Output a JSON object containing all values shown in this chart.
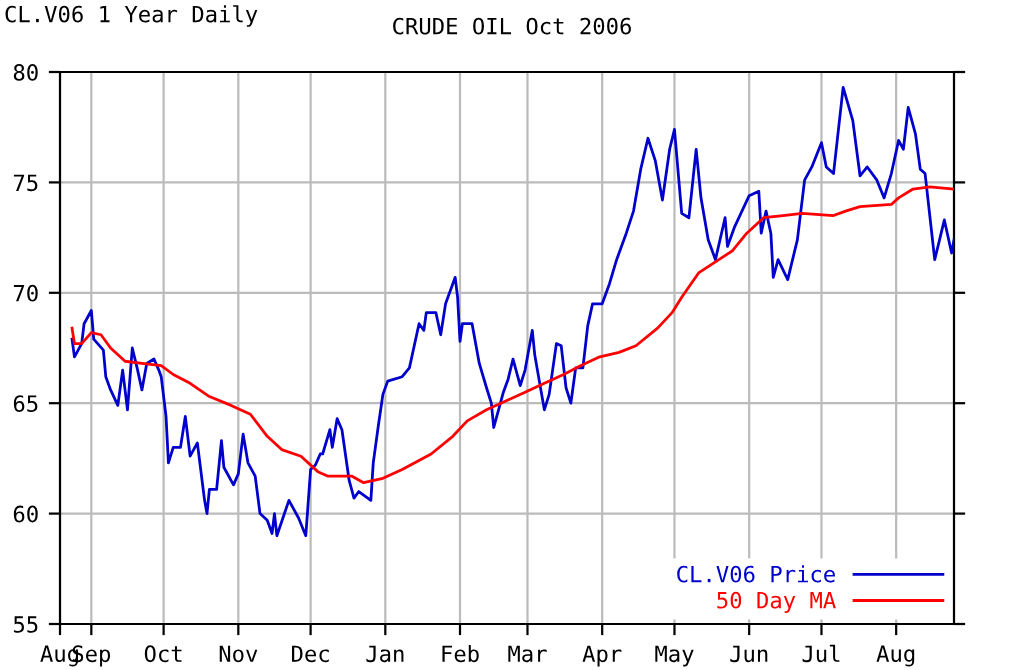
{
  "chart_data": {
    "type": "line",
    "title": "CRUDE OIL Oct 2006",
    "annotations": [
      "CL.V06 1 Year Daily"
    ],
    "xlim": [
      "2005-08-19",
      "2006-08-25"
    ],
    "ylim": [
      55,
      80
    ],
    "yticks": [
      55,
      60,
      65,
      70,
      75,
      80
    ],
    "xticks": [
      {
        "value": "2005-08-19",
        "label": "Aug"
      },
      {
        "value": "2005-09-01",
        "label": "Sep"
      },
      {
        "value": "2005-10-01",
        "label": "Oct"
      },
      {
        "value": "2005-11-01",
        "label": "Nov"
      },
      {
        "value": "2005-12-01",
        "label": "Dec"
      },
      {
        "value": "2006-01-01",
        "label": "Jan"
      },
      {
        "value": "2006-02-01",
        "label": "Feb"
      },
      {
        "value": "2006-03-01",
        "label": "Mar"
      },
      {
        "value": "2006-04-01",
        "label": "Apr"
      },
      {
        "value": "2006-05-01",
        "label": "May"
      },
      {
        "value": "2006-06-01",
        "label": "Jun"
      },
      {
        "value": "2006-07-01",
        "label": "Jul"
      },
      {
        "value": "2006-08-01",
        "label": "Aug"
      }
    ],
    "grid": true,
    "legend": "bottom right",
    "marker": "none",
    "line_style": "solid",
    "series": [
      {
        "name": "CL.V06 Price",
        "color": "#0000cc",
        "x": [
          "2005-08-24",
          "2005-08-25",
          "2005-08-28",
          "2005-08-29",
          "2005-09-01",
          "2005-09-02",
          "2005-09-06",
          "2005-09-07",
          "2005-09-09",
          "2005-09-12",
          "2005-09-14",
          "2005-09-16",
          "2005-09-18",
          "2005-09-20",
          "2005-09-22",
          "2005-09-24",
          "2005-09-27",
          "2005-09-29",
          "2005-09-30",
          "2005-10-02",
          "2005-10-03",
          "2005-10-05",
          "2005-10-08",
          "2005-10-10",
          "2005-10-12",
          "2005-10-15",
          "2005-10-18",
          "2005-10-19",
          "2005-10-20",
          "2005-10-23",
          "2005-10-25",
          "2005-10-26",
          "2005-10-30",
          "2005-11-01",
          "2005-11-03",
          "2005-11-05",
          "2005-11-08",
          "2005-11-10",
          "2005-11-13",
          "2005-11-15",
          "2005-11-16",
          "2005-11-17",
          "2005-11-22",
          "2005-11-26",
          "2005-11-29",
          "2005-12-01",
          "2005-12-03",
          "2005-12-05",
          "2005-12-06",
          "2005-12-09",
          "2005-12-10",
          "2005-12-12",
          "2005-12-14",
          "2005-12-17",
          "2005-12-19",
          "2005-12-21",
          "2005-12-26",
          "2005-12-27",
          "2005-12-29",
          "2005-12-31",
          "2006-01-02",
          "2006-01-08",
          "2006-01-11",
          "2006-01-15",
          "2006-01-17",
          "2006-01-18",
          "2006-01-22",
          "2006-01-24",
          "2006-01-26",
          "2006-01-30",
          "2006-01-31",
          "2006-02-01",
          "2006-02-02",
          "2006-02-06",
          "2006-02-09",
          "2006-02-12",
          "2006-02-14",
          "2006-02-15",
          "2006-02-16",
          "2006-02-19",
          "2006-02-21",
          "2006-02-23",
          "2006-02-26",
          "2006-02-28",
          "2006-03-03",
          "2006-03-04",
          "2006-03-08",
          "2006-03-10",
          "2006-03-13",
          "2006-03-15",
          "2006-03-17",
          "2006-03-19",
          "2006-03-21",
          "2006-03-24",
          "2006-03-26",
          "2006-03-28",
          "2006-04-01",
          "2006-04-04",
          "2006-04-07",
          "2006-04-11",
          "2006-04-14",
          "2006-04-17",
          "2006-04-20",
          "2006-04-23",
          "2006-04-26",
          "2006-04-29",
          "2006-05-01",
          "2006-05-04",
          "2006-05-07",
          "2006-05-10",
          "2006-05-12",
          "2006-05-15",
          "2006-05-18",
          "2006-05-22",
          "2006-05-23",
          "2006-05-26",
          "2006-05-29",
          "2006-06-01",
          "2006-06-05",
          "2006-06-06",
          "2006-06-08",
          "2006-06-10",
          "2006-06-11",
          "2006-06-13",
          "2006-06-17",
          "2006-06-21",
          "2006-06-24",
          "2006-06-27",
          "2006-07-01",
          "2006-07-03",
          "2006-07-06",
          "2006-07-10",
          "2006-07-14",
          "2006-07-17",
          "2006-07-20",
          "2006-07-24",
          "2006-07-27",
          "2006-07-30",
          "2006-08-02",
          "2006-08-04",
          "2006-08-06",
          "2006-08-09",
          "2006-08-11",
          "2006-08-13",
          "2006-08-17",
          "2006-08-19",
          "2006-08-21",
          "2006-08-24",
          "2006-08-25"
        ],
        "values": [
          67.9,
          67.1,
          67.7,
          68.6,
          69.2,
          67.9,
          67.4,
          66.2,
          65.6,
          64.9,
          66.5,
          64.7,
          67.5,
          66.6,
          65.6,
          66.8,
          67.0,
          66.5,
          66.2,
          64.4,
          62.3,
          63.0,
          63.0,
          64.4,
          62.6,
          63.2,
          60.6,
          60.0,
          61.1,
          61.1,
          63.3,
          62.1,
          61.3,
          61.8,
          63.6,
          62.3,
          61.7,
          60.0,
          59.7,
          59.1,
          60.0,
          59.0,
          60.6,
          59.8,
          59.0,
          62.0,
          62.2,
          62.7,
          62.7,
          63.8,
          63.0,
          64.3,
          63.8,
          61.5,
          60.7,
          61.0,
          60.6,
          62.3,
          63.9,
          65.4,
          66.0,
          66.2,
          66.6,
          68.6,
          68.3,
          69.1,
          69.1,
          68.1,
          69.5,
          70.7,
          69.8,
          67.8,
          68.6,
          68.6,
          66.8,
          65.7,
          65.0,
          63.9,
          64.3,
          65.5,
          66.1,
          67.0,
          65.8,
          66.5,
          68.3,
          67.2,
          64.7,
          65.4,
          67.7,
          67.6,
          65.7,
          65.0,
          66.6,
          66.6,
          68.5,
          69.5,
          69.5,
          70.4,
          71.5,
          72.7,
          73.7,
          75.6,
          77.0,
          76.0,
          74.2,
          76.5,
          77.4,
          73.6,
          73.4,
          76.5,
          74.3,
          72.4,
          71.5,
          73.4,
          72.1,
          73.0,
          73.7,
          74.4,
          74.6,
          72.7,
          73.7,
          72.7,
          70.7,
          71.5,
          70.6,
          72.4,
          75.1,
          75.7,
          76.8,
          75.7,
          75.4,
          79.3,
          77.8,
          75.3,
          75.7,
          75.1,
          74.3,
          75.4,
          76.9,
          76.5,
          78.4,
          77.2,
          75.6,
          75.4,
          71.5,
          72.4,
          73.3,
          71.8,
          72.4
        ]
      },
      {
        "name": "50 Day MA",
        "color": "#ff0000",
        "x": [
          "2005-08-24",
          "2005-08-25",
          "2005-08-28",
          "2005-09-01",
          "2005-09-05",
          "2005-09-09",
          "2005-09-15",
          "2005-09-22",
          "2005-09-30",
          "2005-10-05",
          "2005-10-12",
          "2005-10-20",
          "2005-10-29",
          "2005-11-06",
          "2005-11-13",
          "2005-11-19",
          "2005-11-27",
          "2005-12-04",
          "2005-12-08",
          "2005-12-18",
          "2005-12-23",
          "2005-12-31",
          "2006-01-08",
          "2006-01-20",
          "2006-01-29",
          "2006-02-04",
          "2006-02-12",
          "2006-02-20",
          "2006-02-28",
          "2006-03-08",
          "2006-03-16",
          "2006-03-23",
          "2006-03-31",
          "2006-04-08",
          "2006-04-15",
          "2006-04-24",
          "2006-04-30",
          "2006-05-04",
          "2006-05-11",
          "2006-05-18",
          "2006-05-25",
          "2006-05-31",
          "2006-06-07",
          "2006-06-15",
          "2006-06-23",
          "2006-07-06",
          "2006-07-11",
          "2006-07-17",
          "2006-07-30",
          "2006-08-02",
          "2006-08-08",
          "2006-08-15",
          "2006-08-25"
        ],
        "values": [
          68.4,
          67.7,
          67.7,
          68.2,
          68.1,
          67.5,
          66.9,
          66.8,
          66.7,
          66.3,
          65.9,
          65.3,
          64.9,
          64.5,
          63.5,
          62.9,
          62.6,
          61.9,
          61.7,
          61.7,
          61.4,
          61.6,
          62.0,
          62.7,
          63.5,
          64.2,
          64.7,
          65.1,
          65.5,
          65.9,
          66.3,
          66.7,
          67.1,
          67.3,
          67.6,
          68.4,
          69.1,
          69.8,
          70.9,
          71.4,
          71.9,
          72.7,
          73.4,
          73.5,
          73.6,
          73.5,
          73.7,
          73.9,
          74.0,
          74.3,
          74.7,
          74.8,
          74.7
        ]
      }
    ]
  }
}
